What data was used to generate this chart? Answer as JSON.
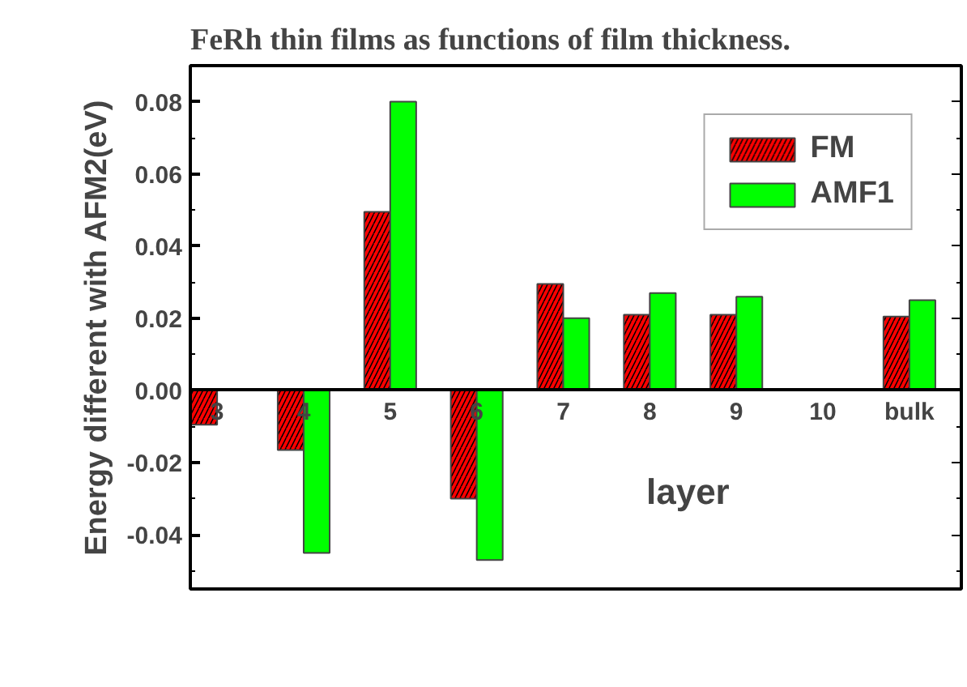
{
  "chart_data": {
    "type": "bar",
    "title": "FeRh thin films as functions of film thickness.",
    "xlabel": "layer",
    "ylabel": "Energy different with AFM2(eV)",
    "categories": [
      "3",
      "4",
      "5",
      "6",
      "7",
      "8",
      "9",
      "10",
      "bulk"
    ],
    "series": [
      {
        "name": "FM",
        "color": "#ff0000",
        "values": [
          -0.0095,
          -0.0165,
          0.0495,
          -0.03,
          0.0295,
          0.021,
          0.021,
          null,
          0.0205
        ]
      },
      {
        "name": "AMF1",
        "color": "#00ff00",
        "values": [
          null,
          -0.045,
          0.08,
          -0.047,
          0.02,
          0.027,
          0.026,
          null,
          0.025
        ]
      }
    ],
    "ylim": [
      -0.055,
      0.09
    ],
    "yticks": [
      {
        "value": -0.04,
        "label": "-0.04"
      },
      {
        "value": -0.02,
        "label": "-0.02"
      },
      {
        "value": 0,
        "label": "0.00"
      },
      {
        "value": 0.02,
        "label": "0.02"
      },
      {
        "value": 0.04,
        "label": "0.04"
      },
      {
        "value": 0.06,
        "label": "0.06"
      },
      {
        "value": 0.08,
        "label": "0.08"
      }
    ],
    "grid": false,
    "legend": "top right"
  }
}
